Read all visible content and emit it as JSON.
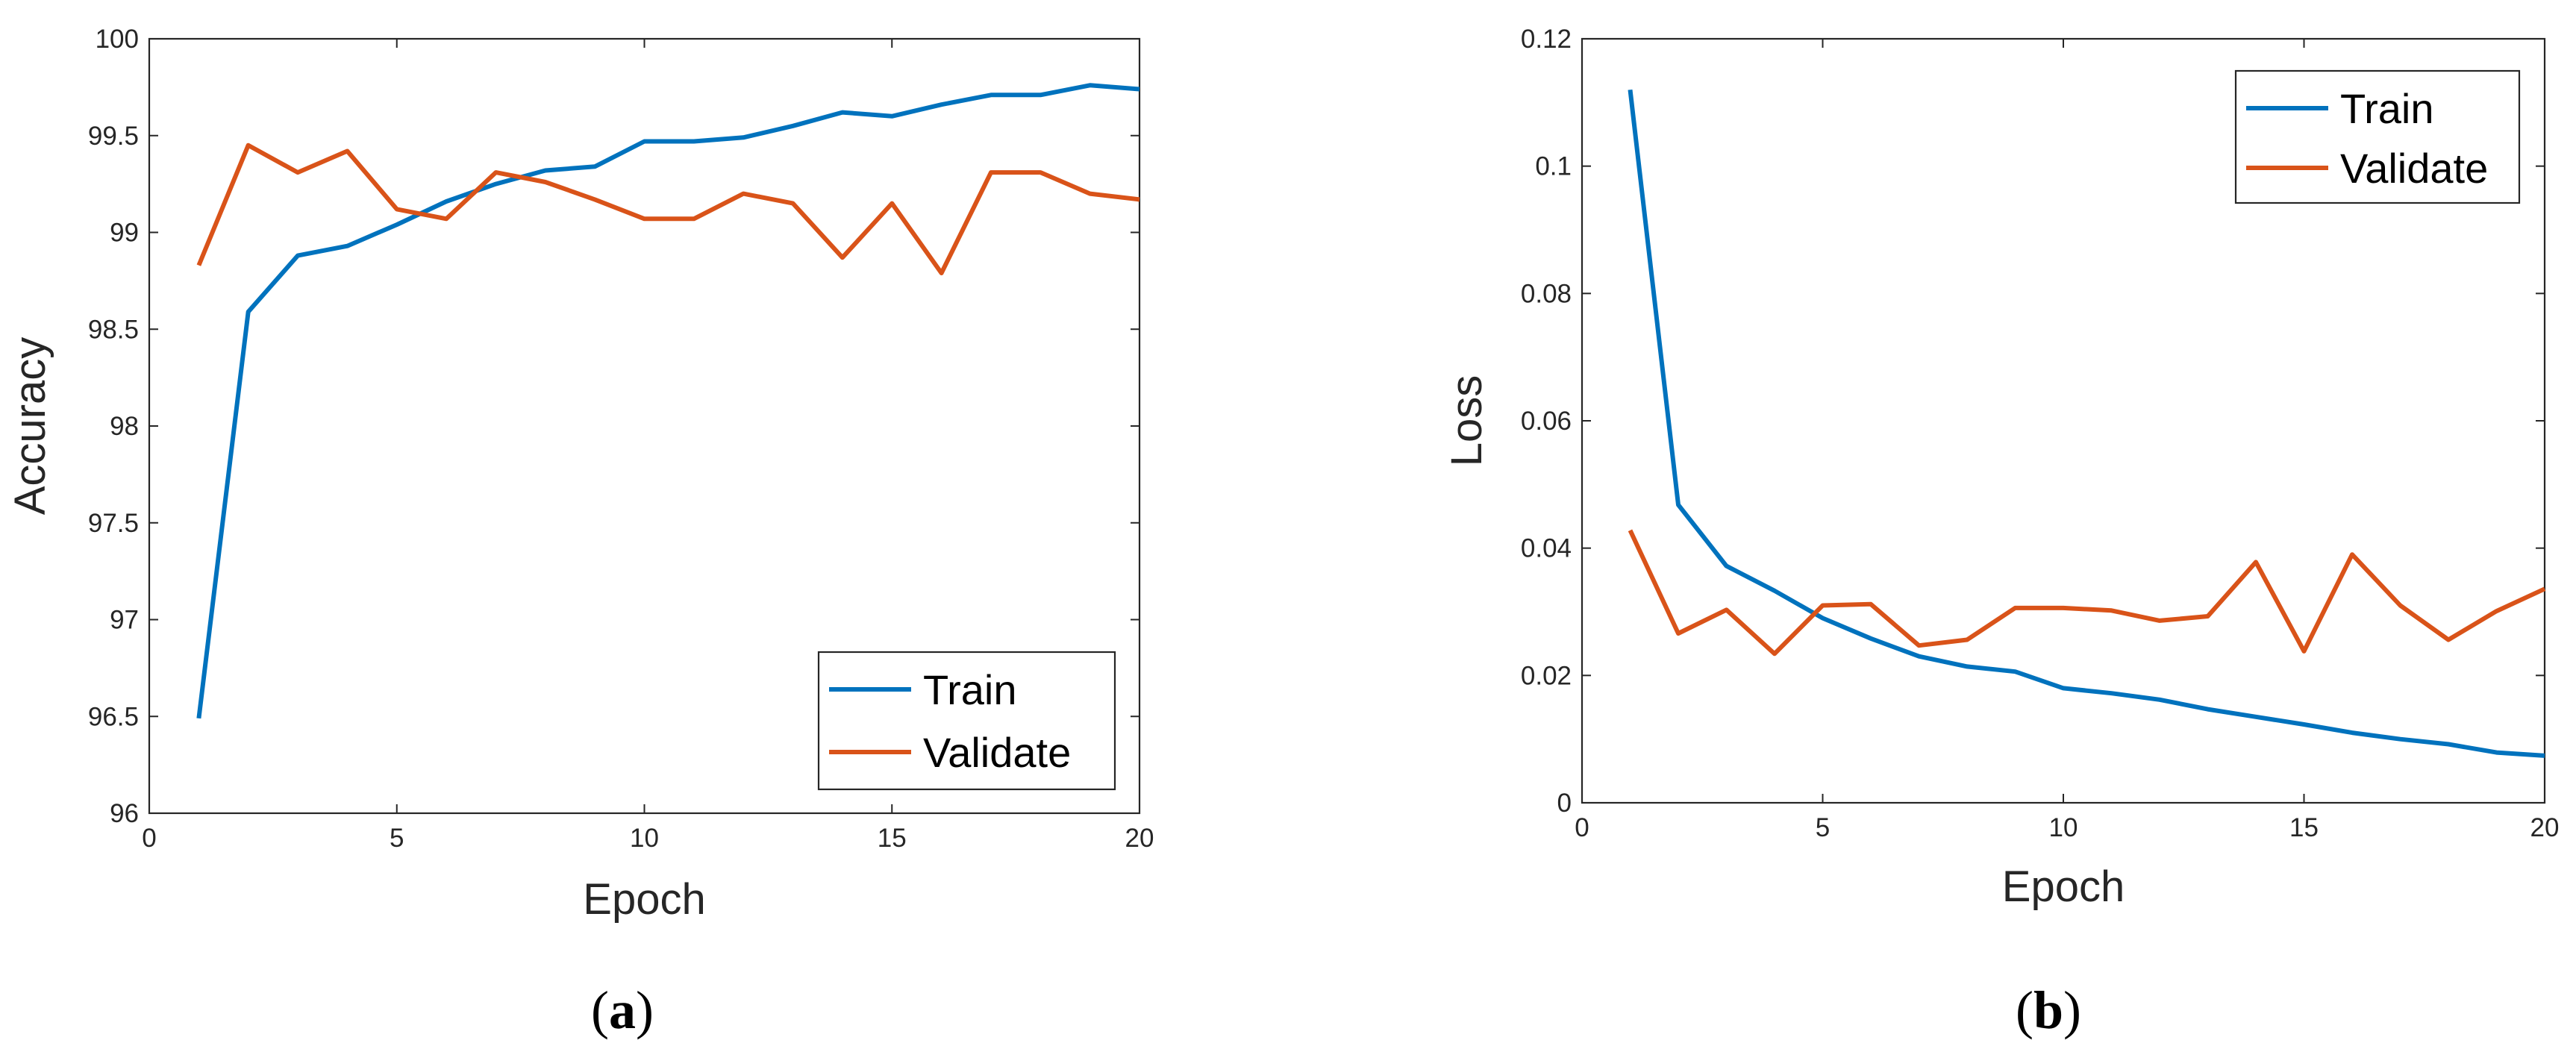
{
  "chart_data": [
    {
      "type": "line",
      "caption": "a",
      "xlabel": "Epoch",
      "ylabel": "Accuracy",
      "xlim": [
        0,
        20
      ],
      "ylim": [
        96,
        100
      ],
      "xticks": [
        "0",
        "5",
        "10",
        "15",
        "20"
      ],
      "yticks": [
        "96",
        "96.5",
        "97",
        "97.5",
        "98",
        "98.5",
        "99",
        "99.5",
        "100"
      ],
      "grid": false,
      "legend_position": "bottom-right",
      "x": [
        1,
        2,
        3,
        4,
        5,
        6,
        7,
        8,
        9,
        10,
        11,
        12,
        13,
        14,
        15,
        16,
        17,
        18,
        19,
        20
      ],
      "series": [
        {
          "name": "Train",
          "color": "#0072BD",
          "values": [
            96.49,
            98.59,
            98.88,
            98.93,
            99.04,
            99.16,
            99.25,
            99.32,
            99.34,
            99.47,
            99.47,
            99.49,
            99.55,
            99.62,
            99.6,
            99.66,
            99.71,
            99.71,
            99.76,
            99.74
          ]
        },
        {
          "name": "Validate",
          "color": "#D95319",
          "values": [
            98.83,
            99.45,
            99.31,
            99.42,
            99.12,
            99.07,
            99.31,
            99.26,
            99.17,
            99.07,
            99.07,
            99.2,
            99.15,
            98.87,
            99.15,
            98.79,
            99.31,
            99.31,
            99.2,
            99.17
          ]
        }
      ]
    },
    {
      "type": "line",
      "caption": "b",
      "xlabel": "Epoch",
      "ylabel": "Loss",
      "xlim": [
        0,
        20
      ],
      "ylim": [
        0,
        0.12
      ],
      "xticks": [
        "0",
        "5",
        "10",
        "15",
        "20"
      ],
      "yticks": [
        "0",
        "0.02",
        "0.04",
        "0.06",
        "0.08",
        "0.1",
        "0.12"
      ],
      "grid": false,
      "legend_position": "top-right",
      "x": [
        1,
        2,
        3,
        4,
        5,
        6,
        7,
        8,
        9,
        10,
        11,
        12,
        13,
        14,
        15,
        16,
        17,
        18,
        19,
        20
      ],
      "series": [
        {
          "name": "Train",
          "color": "#0072BD",
          "values": [
            0.112,
            0.0468,
            0.0372,
            0.0333,
            0.029,
            0.0258,
            0.023,
            0.0214,
            0.0206,
            0.018,
            0.0172,
            0.0162,
            0.0147,
            0.0135,
            0.0123,
            0.011,
            0.01,
            0.0092,
            0.0079,
            0.0074
          ]
        },
        {
          "name": "Validate",
          "color": "#D95319",
          "values": [
            0.0428,
            0.0266,
            0.0303,
            0.0234,
            0.031,
            0.0312,
            0.0247,
            0.0256,
            0.0306,
            0.0306,
            0.0302,
            0.0286,
            0.0293,
            0.0378,
            0.0238,
            0.039,
            0.031,
            0.0256,
            0.0301,
            0.0336
          ]
        }
      ]
    }
  ]
}
